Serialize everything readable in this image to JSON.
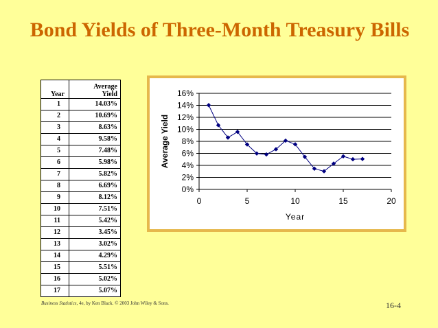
{
  "slide": {
    "title": "Bond Yields of Three-Month Treasury Bills",
    "footer_book": "Business Statistics",
    "footer_rest": ", 4e, by Ken Black. © 2003 John Wiley & Sons.",
    "page_number": "16-4"
  },
  "table": {
    "header_year": "Year",
    "header_yield_line1": "Average",
    "header_yield_line2": "Yield",
    "rows": [
      {
        "year": "1",
        "yield": "14.03%"
      },
      {
        "year": "2",
        "yield": "10.69%"
      },
      {
        "year": "3",
        "yield": "8.63%"
      },
      {
        "year": "4",
        "yield": "9.58%"
      },
      {
        "year": "5",
        "yield": "7.48%"
      },
      {
        "year": "6",
        "yield": "5.98%"
      },
      {
        "year": "7",
        "yield": "5.82%"
      },
      {
        "year": "8",
        "yield": "6.69%"
      },
      {
        "year": "9",
        "yield": "8.12%"
      },
      {
        "year": "10",
        "yield": "7.51%"
      },
      {
        "year": "11",
        "yield": "5.42%"
      },
      {
        "year": "12",
        "yield": "3.45%"
      },
      {
        "year": "13",
        "yield": "3.02%"
      },
      {
        "year": "14",
        "yield": "4.29%"
      },
      {
        "year": "15",
        "yield": "5.51%"
      },
      {
        "year": "16",
        "yield": "5.02%"
      },
      {
        "year": "17",
        "yield": "5.07%"
      }
    ]
  },
  "chart_data": {
    "type": "line",
    "title": "",
    "xlabel": "Year",
    "ylabel": "Average Yield",
    "xlim": [
      0,
      20
    ],
    "ylim": [
      0,
      16
    ],
    "x_ticks": [
      "0",
      "5",
      "10",
      "15",
      "20"
    ],
    "y_ticks": [
      "0%",
      "2%",
      "4%",
      "6%",
      "8%",
      "10%",
      "12%",
      "14%",
      "16%"
    ],
    "grid": "horizontal",
    "legend": "none",
    "line_color": "#000080",
    "series": [
      {
        "x": [
          1,
          2,
          3,
          4,
          5,
          6,
          7,
          8,
          9,
          10,
          11,
          12,
          13,
          14,
          15,
          16,
          17
        ],
        "y": [
          14.03,
          10.69,
          8.63,
          9.58,
          7.48,
          5.98,
          5.82,
          6.69,
          8.12,
          7.51,
          5.42,
          3.45,
          3.02,
          4.29,
          5.51,
          5.02,
          5.07
        ]
      }
    ]
  }
}
